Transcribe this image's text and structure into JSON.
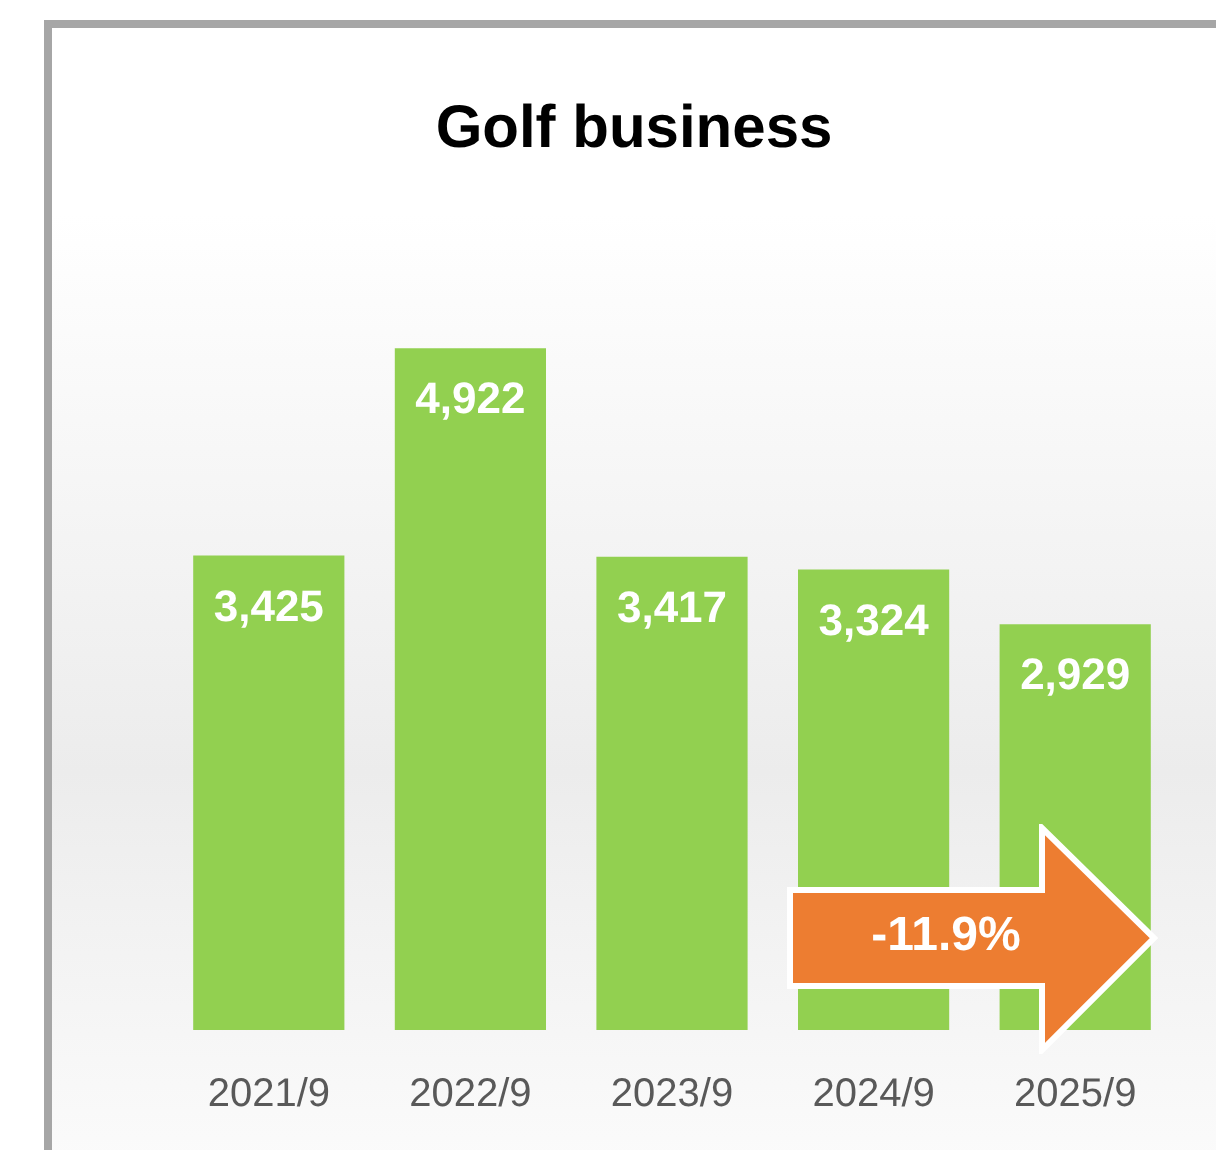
{
  "chart_data": {
    "type": "bar",
    "title": "Golf business",
    "categories": [
      "2021/9",
      "2022/9",
      "2023/9",
      "2024/9",
      "2025/9"
    ],
    "values": [
      3425,
      4922,
      3417,
      3324,
      2929
    ],
    "value_labels": [
      "3,425",
      "4,922",
      "3,417",
      "3,324",
      "2,929"
    ],
    "color": "#92d050",
    "annotations": [
      "-11.9%"
    ]
  }
}
